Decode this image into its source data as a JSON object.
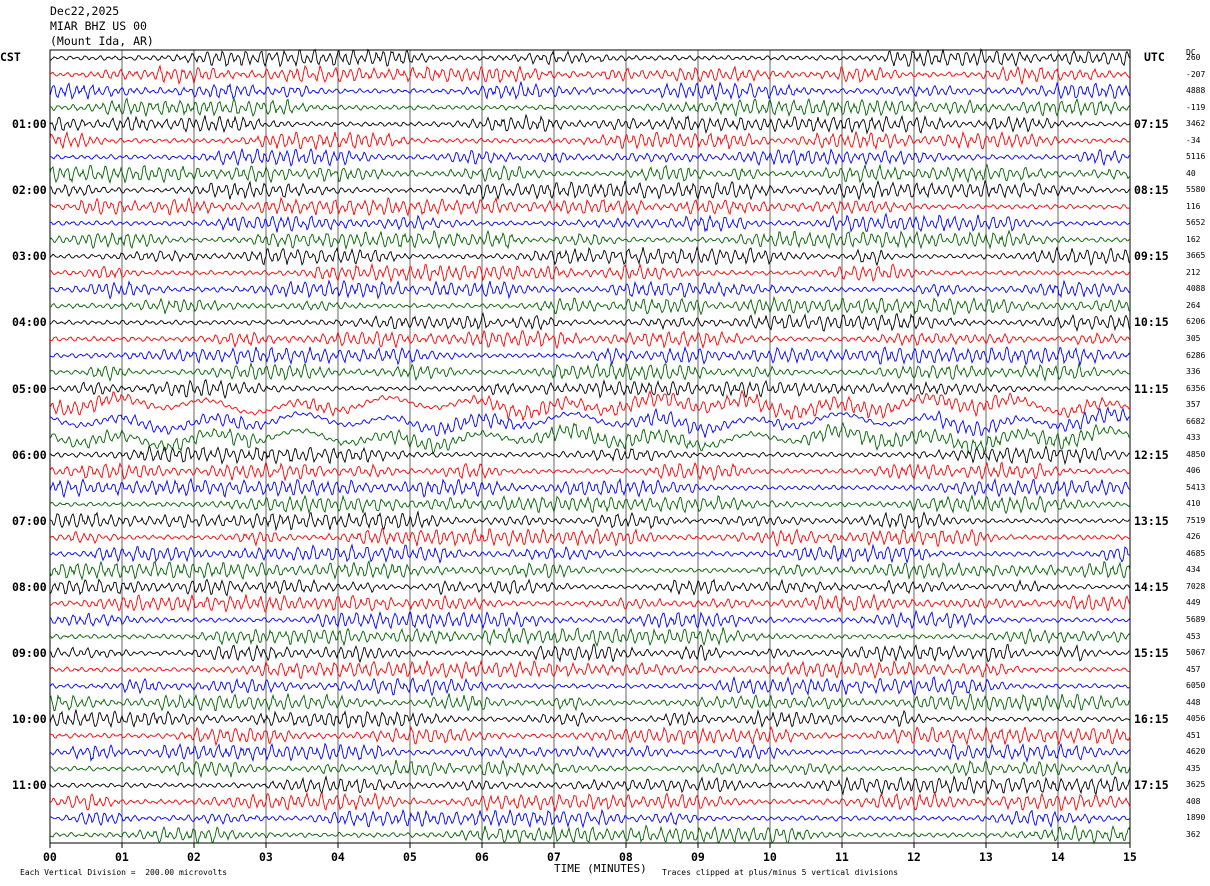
{
  "header": {
    "date": "Dec22,2025",
    "station": "MIAR BHZ US 00",
    "location": "(Mount Ida, AR)"
  },
  "left_timezone": "CST",
  "right_timezone": "UTC",
  "dc_header": "DC",
  "footer": {
    "scale_note": "Each Vertical Division =  200.00 microvolts",
    "clip_note": "Traces clipped at plus/minus 5 vertical divisions"
  },
  "colors": {
    "cycle": [
      "#000000",
      "#ff0000",
      "#0000ff",
      "#006400"
    ],
    "grid": "#000000"
  },
  "chart_data": {
    "type": "line",
    "xlabel": "TIME (MINUTES)",
    "xlim": [
      0,
      15
    ],
    "x_ticks": [
      "00",
      "01",
      "02",
      "03",
      "04",
      "05",
      "06",
      "07",
      "08",
      "09",
      "10",
      "11",
      "12",
      "13",
      "14",
      "15"
    ],
    "trace_count": 48,
    "minutes_per_trace": 15,
    "left_hour_labels": [
      "01:00",
      "02:00",
      "03:00",
      "04:00",
      "05:00",
      "06:00",
      "07:00",
      "08:00",
      "09:00",
      "10:00",
      "11:00"
    ],
    "right_hour_labels": [
      "07:15",
      "08:15",
      "09:15",
      "10:15",
      "11:15",
      "12:15",
      "13:15",
      "14:15",
      "15:15",
      "16:15",
      "17:15"
    ],
    "dc_offsets": [
      "260",
      "-207",
      "4888",
      "-119",
      "3462",
      "-34",
      "5116",
      "40",
      "5580",
      "116",
      "5652",
      "162",
      "3665",
      "212",
      "4088",
      "264",
      "6206",
      "305",
      "6286",
      "336",
      "6356",
      "357",
      "6682",
      "433",
      "4850",
      "406",
      "5413",
      "410",
      "7519",
      "426",
      "4685",
      "434",
      "7028",
      "449",
      "5689",
      "453",
      "5067",
      "457",
      "6050",
      "448",
      "4056",
      "451",
      "4620",
      "435",
      "3625",
      "408",
      "1890",
      "362"
    ]
  }
}
